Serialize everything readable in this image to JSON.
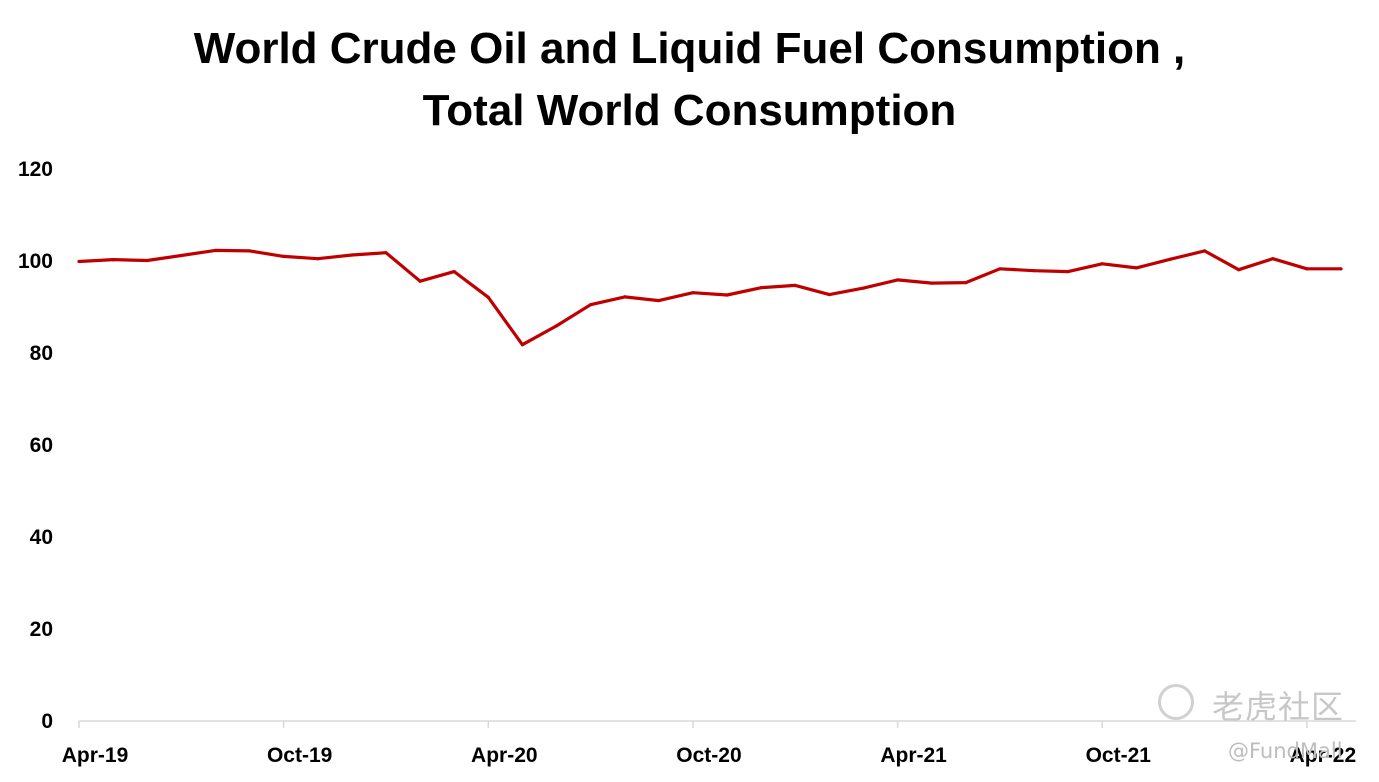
{
  "chart_data": {
    "type": "line",
    "title_line1": "World Crude Oil and Liquid Fuel Consumption ,",
    "title_line2": "Total World Consumption",
    "xlabel": "",
    "ylabel": "",
    "ylim": [
      0,
      120
    ],
    "y_ticks": [
      "0",
      "20",
      "40",
      "60",
      "80",
      "100",
      "120"
    ],
    "x_tick_labels": [
      {
        "index": 0,
        "label": "Apr-19"
      },
      {
        "index": 6,
        "label": "Oct-19"
      },
      {
        "index": 12,
        "label": "Apr-20"
      },
      {
        "index": 18,
        "label": "Oct-20"
      },
      {
        "index": 24,
        "label": "Apr-21"
      },
      {
        "index": 30,
        "label": "Oct-21"
      },
      {
        "index": 36,
        "label": "Apr-22"
      }
    ],
    "series": [
      {
        "name": "Total World Consumption",
        "color": "#c00000",
        "values": [
          99.9,
          100.3,
          100.1,
          101.2,
          102.3,
          102.2,
          101.0,
          100.5,
          101.3,
          101.8,
          95.6,
          97.7,
          92.1,
          81.8,
          85.9,
          90.5,
          92.2,
          91.4,
          93.1,
          92.6,
          94.2,
          94.7,
          92.7,
          94.1,
          95.9,
          95.2,
          95.3,
          98.3,
          97.9,
          97.7,
          99.4,
          98.5,
          100.4,
          102.2,
          98.1,
          100.5,
          98.3,
          98.3
        ]
      }
    ],
    "grid": false,
    "legend": "none"
  },
  "watermark": {
    "brand": "老虎社区",
    "user": "@FundMall"
  }
}
